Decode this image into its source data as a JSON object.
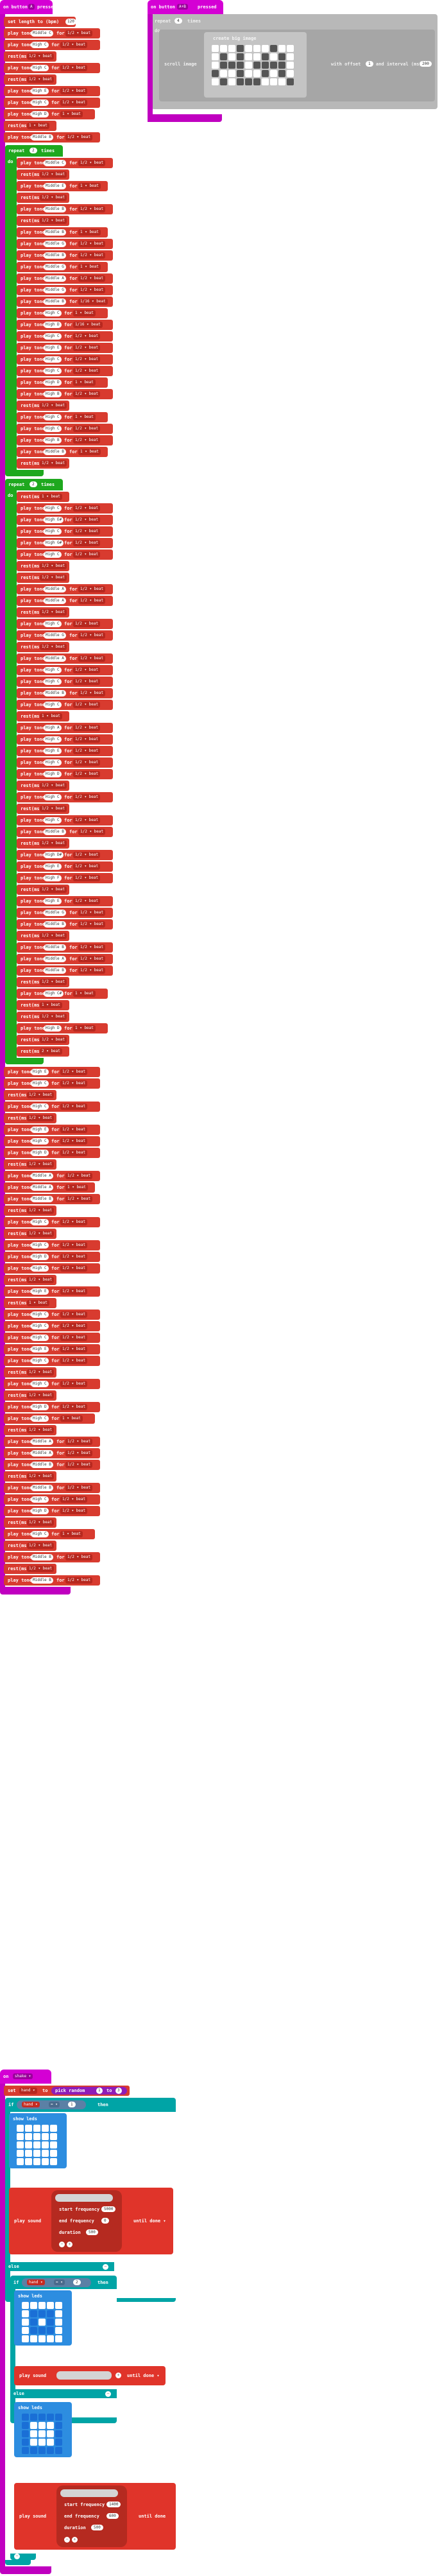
{
  "top_left_hat": {
    "prefix": "on button",
    "button": "A",
    "event": "pressed"
  },
  "top_right_hat": {
    "prefix": "on button",
    "button": "A+B",
    "event": "pressed"
  },
  "set_length": {
    "text": "set length to (bpm)",
    "value": "120"
  },
  "repeat_block": {
    "repeat": "repeat",
    "count": "4",
    "times": "times",
    "do": "do"
  },
  "scroll_image": {
    "label": "scroll image",
    "create_label": "create big image",
    "offset_label": "with offset",
    "offset": "1",
    "interval_label": "and interval (ms)",
    "interval": "200"
  },
  "loop1": {
    "repeat": "repeat",
    "count": "2",
    "times": "times",
    "do": "do"
  },
  "loop2": {
    "repeat": "repeat",
    "count": "2",
    "times": "times",
    "do": "do"
  },
  "labels": {
    "play_tone": "play tone",
    "for": "for",
    "rest": "rest(ms)",
    "beat": "beat"
  },
  "notes_a": [
    [
      "Middle C",
      "1/2 ▾ beat"
    ],
    [
      "High C",
      "1/2 ▾ beat"
    ],
    [
      "rest",
      "1/2 ▾ beat"
    ],
    [
      "High C",
      "1/2 ▾ beat"
    ],
    [
      "rest",
      "1/2 ▾ beat"
    ],
    [
      "High E",
      "1/2 ▾ beat"
    ],
    [
      "High C",
      "1/2 ▾ beat"
    ],
    [
      "High D",
      "1 ▾ beat"
    ],
    [
      "rest",
      "1 ▾ beat"
    ],
    [
      "Middle B",
      "1/2 ▾ beat"
    ]
  ],
  "notes_loop1": [
    [
      "Middle C",
      "1/2 ▾ beat"
    ],
    [
      "rest",
      "1/2 ▾ beat"
    ],
    [
      "Middle E",
      "1 ▾ beat"
    ],
    [
      "rest",
      "1/2 ▾ beat"
    ],
    [
      "Middle B",
      "1/2 ▾ beat"
    ],
    [
      "rest",
      "1/2 ▾ beat"
    ],
    [
      "Middle B",
      "1 ▾ beat"
    ],
    [
      "Middle G",
      "1/2 ▾ beat"
    ],
    [
      "Middle B",
      "1/2 ▾ beat"
    ],
    [
      "Middle G",
      "1 ▾ beat"
    ],
    [
      "Middle A",
      "1/2 ▾ beat"
    ],
    [
      "Middle G",
      "1/2 ▾ beat"
    ],
    [
      "Middle B",
      "1/16 ▾ beat"
    ],
    [
      "High C",
      "1 ▾ beat"
    ],
    [
      "High D",
      "1/16 ▾ beat"
    ],
    [
      "High C",
      "1/2 ▾ beat"
    ],
    [
      "High E",
      "1/2 ▾ beat"
    ],
    [
      "High C",
      "1/2 ▾ beat"
    ],
    [
      "High C",
      "1/2 ▾ beat"
    ],
    [
      "High D",
      "1 ▾ beat"
    ],
    [
      "High B",
      "1/2 ▾ beat"
    ],
    [
      "rest",
      "1/2 ▾ beat"
    ],
    [
      "High C",
      "1 ▾ beat"
    ],
    [
      "High C",
      "1/2 ▾ beat"
    ],
    [
      "High B",
      "1/2 ▾ beat"
    ],
    [
      "Middle B",
      "1 ▾ beat"
    ],
    [
      "rest",
      "1/2 ▾ beat"
    ]
  ],
  "notes_loop2": [
    [
      "rest",
      "1 ▾ beat"
    ],
    [
      "High C",
      "1/2 ▾ beat"
    ],
    [
      "High E#",
      "1/2 ▾ beat"
    ],
    [
      "High C",
      "1/2 ▾ beat"
    ],
    [
      "High G#",
      "1/2 ▾ beat"
    ],
    [
      "High C",
      "1/2 ▾ beat"
    ],
    [
      "rest",
      "1/2 ▾ beat"
    ],
    [
      "rest",
      "1/2 ▾ beat"
    ],
    [
      "Middle A",
      "1/2 ▾ beat"
    ],
    [
      "Middle A",
      "1/2 ▾ beat"
    ],
    [
      "rest",
      "1/2 ▾ beat"
    ],
    [
      "High C",
      "1/2 ▾ beat"
    ],
    [
      "Middle G",
      "1/2 ▾ beat"
    ],
    [
      "rest",
      "1/2 ▾ beat"
    ],
    [
      "Middle A",
      "1/2 ▾ beat"
    ],
    [
      "High C",
      "1/2 ▾ beat"
    ],
    [
      "High C",
      "1/2 ▾ beat"
    ],
    [
      "Middle B",
      "1/2 ▾ beat"
    ],
    [
      "High C",
      "1/2 ▾ beat"
    ],
    [
      "rest",
      "1 ▾ beat"
    ],
    [
      "High A",
      "1/2 ▾ beat"
    ],
    [
      "High C",
      "1/2 ▾ beat"
    ],
    [
      "High E",
      "1/2 ▾ beat"
    ],
    [
      "High C",
      "1/2 ▾ beat"
    ],
    [
      "High D",
      "1/2 ▾ beat"
    ],
    [
      "rest",
      "1/2 ▾ beat"
    ],
    [
      "High C",
      "1/2 ▾ beat"
    ],
    [
      "rest",
      "1/2 ▾ beat"
    ],
    [
      "High C",
      "1/2 ▾ beat"
    ],
    [
      "Middle B",
      "1/2 ▾ beat"
    ],
    [
      "rest",
      "1/2 ▾ beat"
    ],
    [
      "High D#",
      "1/2 ▾ beat"
    ],
    [
      "High E",
      "1/2 ▾ beat"
    ],
    [
      "High F",
      "1/2 ▾ beat"
    ],
    [
      "rest",
      "1/2 ▾ beat"
    ],
    [
      "High E",
      "1/2 ▾ beat"
    ],
    [
      "Middle G",
      "1/2 ▾ beat"
    ],
    [
      "Middle B",
      "1/2 ▾ beat"
    ],
    [
      "rest",
      "1/2 ▾ beat"
    ],
    [
      "Middle B",
      "1/2 ▾ beat"
    ],
    [
      "Middle A",
      "1/2 ▾ beat"
    ],
    [
      "Middle B",
      "1/2 ▾ beat"
    ],
    [
      "rest",
      "1/2 ▾ beat"
    ],
    [
      "High C#",
      "1 ▾ beat"
    ],
    [
      "rest",
      "1 ▾ beat"
    ],
    [
      "rest",
      "1/2 ▾ beat"
    ],
    [
      "High D",
      "1 ▾ beat"
    ],
    [
      "rest",
      "1/2 ▾ beat"
    ],
    [
      "rest",
      "2 ▾ beat"
    ]
  ],
  "notes_tail": [
    [
      "High E",
      "1/2 ▾ beat"
    ],
    [
      "High C",
      "1/2 ▾ beat"
    ],
    [
      "rest",
      "1/2 ▾ beat"
    ],
    [
      "High C",
      "1/2 ▾ beat"
    ],
    [
      "rest",
      "1/2 ▾ beat"
    ],
    [
      "High E",
      "1/2 ▾ beat"
    ],
    [
      "High C",
      "1/2 ▾ beat"
    ],
    [
      "High D",
      "1/2 ▾ beat"
    ],
    [
      "rest",
      "1/2 ▾ beat"
    ],
    [
      "Middle A",
      "1/2 ▾ beat"
    ],
    [
      "Middle A",
      "1 ▾ beat"
    ],
    [
      "Middle B",
      "1/2 ▾ beat"
    ],
    [
      "rest",
      "1/2 ▾ beat"
    ],
    [
      "High C",
      "1/2 ▾ beat"
    ],
    [
      "rest",
      "1/2 ▾ beat"
    ],
    [
      "High C",
      "1/2 ▾ beat"
    ],
    [
      "High D",
      "1/2 ▾ beat"
    ],
    [
      "High C",
      "1/2 ▾ beat"
    ],
    [
      "rest",
      "1/2 ▾ beat"
    ],
    [
      "High E",
      "1/2 ▾ beat"
    ],
    [
      "rest",
      "1 ▾ beat"
    ],
    [
      "High C",
      "1/2 ▾ beat"
    ],
    [
      "High C",
      "1/2 ▾ beat"
    ],
    [
      "High C",
      "1/2 ▾ beat"
    ],
    [
      "High E",
      "1/2 ▾ beat"
    ],
    [
      "High C",
      "1/2 ▾ beat"
    ],
    [
      "rest",
      "1/2 ▾ beat"
    ],
    [
      "High C",
      "1/2 ▾ beat"
    ],
    [
      "rest",
      "1/2 ▾ beat"
    ],
    [
      "High D",
      "1/2 ▾ beat"
    ],
    [
      "High C",
      "1 ▾ beat"
    ],
    [
      "rest",
      "1/2 ▾ beat"
    ],
    [
      "Middle A",
      "1/2 ▾ beat"
    ],
    [
      "Middle A",
      "1/2 ▾ beat"
    ],
    [
      "Middle B",
      "1/2 ▾ beat"
    ],
    [
      "rest",
      "1/2 ▾ beat"
    ],
    [
      "Middle B",
      "1/2 ▾ beat"
    ],
    [
      "High C",
      "1/2 ▾ beat"
    ],
    [
      "High D",
      "1/2 ▾ beat"
    ],
    [
      "rest",
      "1/2 ▾ beat"
    ],
    [
      "High C",
      "1 ▾ beat"
    ],
    [
      "rest",
      "1/2 ▾ beat"
    ],
    [
      "Middle B",
      "1/2 ▾ beat"
    ],
    [
      "rest",
      "1/2 ▾ beat"
    ],
    [
      "Middle B",
      "1/2 ▾ beat"
    ]
  ],
  "on_shake": {
    "label": "on",
    "event": "shake ▾"
  },
  "set_hand": {
    "set": "set",
    "var": "hand ▾",
    "to": "to",
    "pick": "pick random",
    "from": "1",
    "to2": "to",
    "max": "3"
  },
  "if1": {
    "if": "if",
    "var": "hand ▾",
    "op": "= ▾",
    "val": "1",
    "then": "then"
  },
  "show_leds": {
    "label": "show leds"
  },
  "play_sound": {
    "play": "play sound",
    "until": "until done ▾",
    "start_freq": "start frequency",
    "start_val": "5000",
    "end_freq": "end frequency",
    "end_val": "0",
    "duration": "duration",
    "dur_val": "500"
  },
  "else1": {
    "label": "else"
  },
  "if2": {
    "if": "if",
    "var": "hand ▾",
    "op": "= ▾",
    "val": "2",
    "then": "then"
  },
  "play_sound2": {
    "play": "play sound",
    "until": "until done ▾"
  },
  "else2": {
    "label": "else"
  },
  "play_sound3": {
    "play": "play sound",
    "until": "until done",
    "start_freq": "start frequency",
    "start_val": "1400",
    "end_freq": "end frequency",
    "end_val": "600",
    "duration": "duration",
    "dur_val": "500"
  }
}
